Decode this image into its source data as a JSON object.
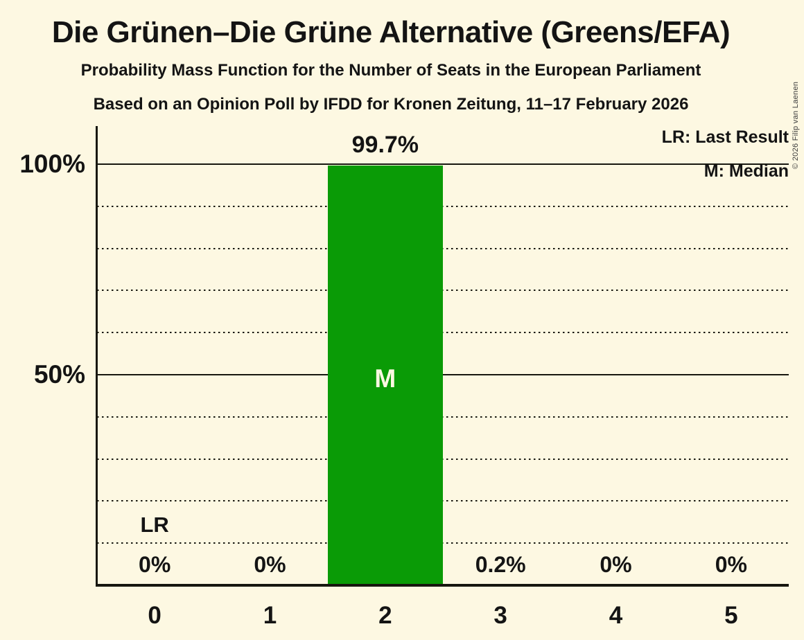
{
  "copyright": "© 2026 Filip van Laenen",
  "chart_data": {
    "type": "bar",
    "title": "Die Grünen–Die Grüne Alternative (Greens/EFA)",
    "subtitle": "Probability Mass Function for the Number of Seats in the European Parliament",
    "source_line": "Based on an Opinion Poll by IFDD for Kronen Zeitung, 11–17 February 2026",
    "xlabel": "",
    "ylabel": "",
    "categories": [
      "0",
      "1",
      "2",
      "3",
      "4",
      "5"
    ],
    "values": [
      0,
      0,
      99.7,
      0.2,
      0,
      0
    ],
    "value_labels": [
      "0%",
      "0%",
      "99.7%",
      "0.2%",
      "0%",
      "0%"
    ],
    "ylim": [
      0,
      100
    ],
    "y_ticks": [
      {
        "pct": 100,
        "label": "100%"
      },
      {
        "pct": 50,
        "label": "50%"
      }
    ],
    "grid": {
      "minor_step_pct": 10,
      "minor_style": "dotted",
      "major_pcts": [
        50,
        100
      ],
      "major_style": "solid"
    },
    "legend": {
      "lr": "LR: Last Result",
      "m": "M: Median"
    },
    "annotations": {
      "median_index": 2,
      "median_label": "M",
      "last_result_index": 0,
      "last_result_label": "LR"
    },
    "colors": {
      "bar": "#0A9B06",
      "background": "#FDF8E2",
      "text": "#141414",
      "median_text": "#FDF8E2"
    }
  }
}
